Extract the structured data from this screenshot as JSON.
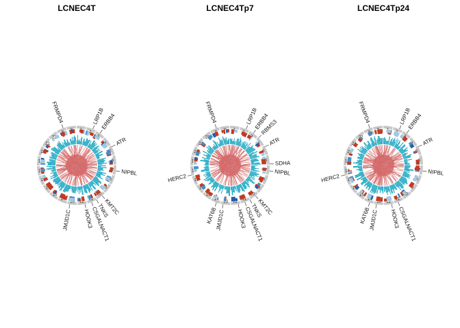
{
  "chart_data": [
    {
      "type": "circos",
      "title": "LCNEC4T",
      "genes": [
        "LRP1B",
        "ERBB4",
        "ATR",
        "NIPBL",
        "KMT2C",
        "TNKS",
        "CSGALNACT1",
        "HOOK3",
        "JMJD1C",
        "FRMPD4"
      ]
    },
    {
      "type": "circos",
      "title": "LCNEC4Tp7",
      "genes": [
        "LRP1B",
        "ERBB4",
        "RBMS3",
        "ATR",
        "SDHA",
        "NIPBL",
        "KMT2C",
        "TNKS",
        "CSGALNACT1",
        "HOOK3",
        "JMJD1C",
        "KAT6B",
        "HERC2",
        "FRMPD4"
      ]
    },
    {
      "type": "circos",
      "title": "LCNEC4Tp24",
      "genes": [
        "LRP1B",
        "ERBB4",
        "ATR",
        "NIPBL",
        "CSGALNACT1",
        "HOOK3",
        "JMJD1C",
        "KAT6B",
        "HERC2",
        "FRMPD4"
      ]
    }
  ],
  "chromosomes": [
    "1",
    "2",
    "3",
    "4",
    "5",
    "6",
    "7",
    "8",
    "9",
    "10",
    "11",
    "12",
    "13",
    "14",
    "15",
    "16",
    "17",
    "18",
    "19",
    "20",
    "21",
    "22",
    "X",
    "Y"
  ],
  "colors": {
    "ideogram": "#c8c8c8",
    "cnv_gain": "#c23b22",
    "cnv_loss_light": "#9ecae1",
    "cnv_loss_mid": "#4a8ec2",
    "cnv_loss_dark": "#1f5fa8",
    "track_cyan": "#1aa6c0",
    "links": "#d46a6a"
  }
}
